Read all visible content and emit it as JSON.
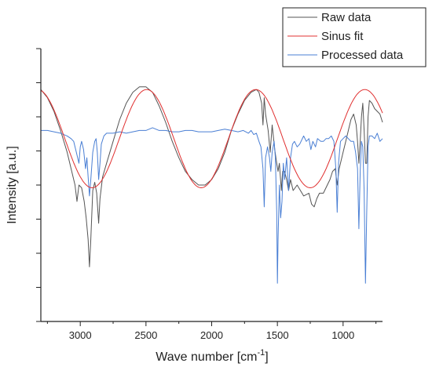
{
  "chart_data": {
    "type": "line",
    "xlabel": "Wave number [cm",
    "xlabel_sup": "-1",
    "xlabel_end": "]",
    "ylabel": "Intensity [a.u.]",
    "xlim": [
      3300,
      700
    ],
    "ylim": [
      0,
      100
    ],
    "x_ticks": [
      3000,
      2500,
      2000,
      1500,
      1000
    ],
    "y_tick_labels_shown": false,
    "legend_position": "top-right",
    "grid": false,
    "series": [
      {
        "name": "Raw data",
        "color": "#555555",
        "points": [
          [
            3300,
            85
          ],
          [
            3250,
            82
          ],
          [
            3200,
            77
          ],
          [
            3150,
            70
          ],
          [
            3100,
            62
          ],
          [
            3070,
            56
          ],
          [
            3040,
            50
          ],
          [
            3025,
            44
          ],
          [
            3010,
            50
          ],
          [
            2990,
            49
          ],
          [
            2970,
            44
          ],
          [
            2955,
            38
          ],
          [
            2940,
            30
          ],
          [
            2930,
            20
          ],
          [
            2920,
            30
          ],
          [
            2905,
            48
          ],
          [
            2890,
            51
          ],
          [
            2875,
            47
          ],
          [
            2860,
            36
          ],
          [
            2850,
            45
          ],
          [
            2830,
            53
          ],
          [
            2800,
            58
          ],
          [
            2750,
            66
          ],
          [
            2700,
            74
          ],
          [
            2650,
            80
          ],
          [
            2600,
            84
          ],
          [
            2550,
            86
          ],
          [
            2500,
            86
          ],
          [
            2450,
            84
          ],
          [
            2400,
            79
          ],
          [
            2350,
            73
          ],
          [
            2300,
            66
          ],
          [
            2250,
            60
          ],
          [
            2200,
            55
          ],
          [
            2150,
            52
          ],
          [
            2100,
            50
          ],
          [
            2050,
            50
          ],
          [
            2000,
            52
          ],
          [
            1950,
            56
          ],
          [
            1900,
            62
          ],
          [
            1850,
            70
          ],
          [
            1800,
            76
          ],
          [
            1750,
            81
          ],
          [
            1700,
            84
          ],
          [
            1660,
            85
          ],
          [
            1640,
            84
          ],
          [
            1620,
            80
          ],
          [
            1610,
            72
          ],
          [
            1600,
            82
          ],
          [
            1590,
            76
          ],
          [
            1570,
            70
          ],
          [
            1555,
            62
          ],
          [
            1540,
            72
          ],
          [
            1520,
            63
          ],
          [
            1505,
            58
          ],
          [
            1495,
            55
          ],
          [
            1485,
            58
          ],
          [
            1470,
            48
          ],
          [
            1460,
            55
          ],
          [
            1445,
            55
          ],
          [
            1430,
            52
          ],
          [
            1415,
            48
          ],
          [
            1400,
            52
          ],
          [
            1380,
            48
          ],
          [
            1350,
            50
          ],
          [
            1300,
            46
          ],
          [
            1260,
            47
          ],
          [
            1240,
            43
          ],
          [
            1220,
            42
          ],
          [
            1200,
            45
          ],
          [
            1180,
            47
          ],
          [
            1150,
            47
          ],
          [
            1120,
            50
          ],
          [
            1100,
            52
          ],
          [
            1080,
            55
          ],
          [
            1060,
            56
          ],
          [
            1045,
            50
          ],
          [
            1030,
            56
          ],
          [
            1000,
            62
          ],
          [
            980,
            66
          ],
          [
            960,
            70
          ],
          [
            940,
            74
          ],
          [
            920,
            76
          ],
          [
            900,
            72
          ],
          [
            890,
            66
          ],
          [
            880,
            58
          ],
          [
            870,
            66
          ],
          [
            860,
            75
          ],
          [
            850,
            80
          ],
          [
            840,
            70
          ],
          [
            830,
            58
          ],
          [
            820,
            58
          ],
          [
            810,
            75
          ],
          [
            800,
            81
          ],
          [
            780,
            80
          ],
          [
            760,
            78
          ],
          [
            740,
            77
          ],
          [
            720,
            76
          ],
          [
            700,
            73
          ]
        ]
      },
      {
        "name": "Sinus fit",
        "color": "#e03030",
        "function": "sine",
        "amplitude": 18,
        "offset": 67,
        "period_cm": 830,
        "peak_wavenumber": 2495
      },
      {
        "name": "Processed data",
        "color": "#4a7fd4",
        "points": [
          [
            3300,
            70
          ],
          [
            3250,
            70
          ],
          [
            3200,
            69.5
          ],
          [
            3150,
            69
          ],
          [
            3100,
            68
          ],
          [
            3070,
            67
          ],
          [
            3050,
            66
          ],
          [
            3030,
            62
          ],
          [
            3010,
            58
          ],
          [
            3000,
            64
          ],
          [
            2990,
            66
          ],
          [
            2975,
            63
          ],
          [
            2960,
            56
          ],
          [
            2950,
            60
          ],
          [
            2940,
            53
          ],
          [
            2930,
            46
          ],
          [
            2920,
            52
          ],
          [
            2905,
            62
          ],
          [
            2890,
            66
          ],
          [
            2880,
            67
          ],
          [
            2870,
            62
          ],
          [
            2860,
            52
          ],
          [
            2850,
            58
          ],
          [
            2840,
            65
          ],
          [
            2820,
            68
          ],
          [
            2800,
            69
          ],
          [
            2750,
            69
          ],
          [
            2700,
            69.5
          ],
          [
            2650,
            69
          ],
          [
            2600,
            69.5
          ],
          [
            2550,
            70
          ],
          [
            2500,
            70
          ],
          [
            2450,
            71
          ],
          [
            2400,
            70
          ],
          [
            2350,
            70
          ],
          [
            2300,
            69.5
          ],
          [
            2250,
            69.5
          ],
          [
            2200,
            70
          ],
          [
            2150,
            70
          ],
          [
            2100,
            69.5
          ],
          [
            2050,
            69.5
          ],
          [
            2000,
            69.5
          ],
          [
            1950,
            70
          ],
          [
            1900,
            70.5
          ],
          [
            1850,
            70
          ],
          [
            1800,
            69.5
          ],
          [
            1760,
            70
          ],
          [
            1720,
            69
          ],
          [
            1700,
            70
          ],
          [
            1680,
            68.5
          ],
          [
            1660,
            69
          ],
          [
            1640,
            66
          ],
          [
            1625,
            64
          ],
          [
            1610,
            56
          ],
          [
            1600,
            42
          ],
          [
            1590,
            60
          ],
          [
            1575,
            64
          ],
          [
            1560,
            60
          ],
          [
            1550,
            55
          ],
          [
            1540,
            62
          ],
          [
            1525,
            66
          ],
          [
            1515,
            60
          ],
          [
            1505,
            40
          ],
          [
            1500,
            14
          ],
          [
            1495,
            30
          ],
          [
            1485,
            50
          ],
          [
            1475,
            38
          ],
          [
            1465,
            44
          ],
          [
            1455,
            58
          ],
          [
            1445,
            52
          ],
          [
            1430,
            60
          ],
          [
            1415,
            48
          ],
          [
            1400,
            60
          ],
          [
            1385,
            65
          ],
          [
            1370,
            66
          ],
          [
            1350,
            64
          ],
          [
            1330,
            65
          ],
          [
            1300,
            68
          ],
          [
            1280,
            66
          ],
          [
            1260,
            67
          ],
          [
            1245,
            63
          ],
          [
            1230,
            66
          ],
          [
            1210,
            64
          ],
          [
            1195,
            67
          ],
          [
            1170,
            66
          ],
          [
            1150,
            66
          ],
          [
            1130,
            67
          ],
          [
            1110,
            67
          ],
          [
            1090,
            68
          ],
          [
            1070,
            66
          ],
          [
            1055,
            56
          ],
          [
            1045,
            40
          ],
          [
            1035,
            58
          ],
          [
            1020,
            66
          ],
          [
            1000,
            67
          ],
          [
            980,
            68
          ],
          [
            960,
            67
          ],
          [
            940,
            66
          ],
          [
            920,
            66
          ],
          [
            905,
            62
          ],
          [
            890,
            56
          ],
          [
            880,
            34
          ],
          [
            870,
            55
          ],
          [
            860,
            66
          ],
          [
            850,
            64
          ],
          [
            840,
            48
          ],
          [
            830,
            14
          ],
          [
            820,
            40
          ],
          [
            810,
            64
          ],
          [
            800,
            68
          ],
          [
            780,
            68
          ],
          [
            760,
            67
          ],
          [
            740,
            69
          ],
          [
            720,
            66
          ],
          [
            700,
            67
          ]
        ]
      }
    ]
  }
}
